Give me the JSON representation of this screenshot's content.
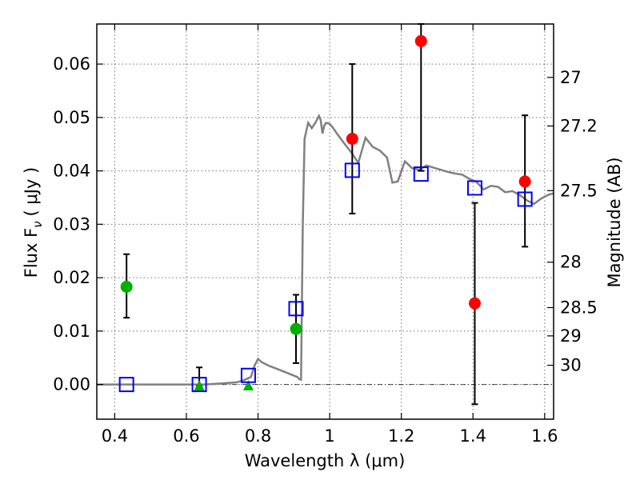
{
  "chart_data": {
    "type": "scatter",
    "xlabel": "Wavelength  λ (μm)",
    "ylabel": "Flux  F",
    "ylabel_sub": "ν",
    "ylabel_unit": "( μJy )",
    "y2label": "Magnitude (AB)",
    "xlim": [
      0.35,
      1.625
    ],
    "ylim": [
      -0.0065,
      0.0675
    ],
    "grid": true,
    "x_ticks": [
      {
        "value": 0.4,
        "label": "0.4"
      },
      {
        "value": 0.6,
        "label": "0.6"
      },
      {
        "value": 0.8,
        "label": "0.8"
      },
      {
        "value": 1.0,
        "label": "1"
      },
      {
        "value": 1.2,
        "label": "1.2"
      },
      {
        "value": 1.4,
        "label": "1.4"
      },
      {
        "value": 1.6,
        "label": "1.6"
      }
    ],
    "y_ticks": [
      {
        "value": 0.0,
        "label": "0.00"
      },
      {
        "value": 0.01,
        "label": "0.01"
      },
      {
        "value": 0.02,
        "label": "0.02"
      },
      {
        "value": 0.03,
        "label": "0.03"
      },
      {
        "value": 0.04,
        "label": "0.04"
      },
      {
        "value": 0.05,
        "label": "0.05"
      },
      {
        "value": 0.06,
        "label": "0.06"
      }
    ],
    "y2_ticks": [
      {
        "flux": 0.0575,
        "label": "27"
      },
      {
        "flux": 0.0484,
        "label": "27.2"
      },
      {
        "flux": 0.0363,
        "label": "27.5"
      },
      {
        "flux": 0.0229,
        "label": "28"
      },
      {
        "flux": 0.0144,
        "label": "28.5"
      },
      {
        "flux": 0.0091,
        "label": "29"
      },
      {
        "flux": 0.0036,
        "label": "30"
      }
    ],
    "model_sed": {
      "name": "model spectrum",
      "color": "#808080",
      "x": [
        0.35,
        0.45,
        0.55,
        0.65,
        0.7,
        0.74,
        0.76,
        0.78,
        0.79,
        0.8,
        0.81,
        0.83,
        0.85,
        0.88,
        0.91,
        0.915,
        0.92,
        0.925,
        0.93,
        0.94,
        0.95,
        0.96,
        0.97,
        0.975,
        0.98,
        0.985,
        0.99,
        1.0,
        1.01,
        1.02,
        1.04,
        1.06,
        1.08,
        1.1,
        1.12,
        1.14,
        1.16,
        1.175,
        1.19,
        1.21,
        1.23,
        1.25,
        1.27,
        1.29,
        1.31,
        1.33,
        1.35,
        1.37,
        1.39,
        1.41,
        1.43,
        1.45,
        1.47,
        1.49,
        1.51,
        1.53,
        1.55,
        1.57,
        1.59,
        1.61,
        1.625
      ],
      "y": [
        0.0,
        0.0,
        0.0,
        0.0,
        0.0002,
        0.0004,
        0.0008,
        0.0014,
        0.0035,
        0.0048,
        0.0042,
        0.0035,
        0.003,
        0.0022,
        0.0014,
        0.001,
        0.0009,
        0.03,
        0.046,
        0.049,
        0.048,
        0.049,
        0.0503,
        0.0495,
        0.047,
        0.0485,
        0.049,
        0.0488,
        0.048,
        0.047,
        0.0452,
        0.0435,
        0.0415,
        0.0462,
        0.0445,
        0.0438,
        0.0425,
        0.0378,
        0.038,
        0.0418,
        0.0405,
        0.0402,
        0.041,
        0.0406,
        0.0402,
        0.0398,
        0.0395,
        0.0393,
        0.0385,
        0.0379,
        0.0365,
        0.0372,
        0.037,
        0.036,
        0.0362,
        0.0355,
        0.0345,
        0.0338,
        0.0348,
        0.0355,
        0.0358
      ]
    },
    "series": [
      {
        "name": "green circles",
        "marker": "circle",
        "color": "#00b000",
        "x": [
          0.433,
          0.906
        ],
        "y": [
          0.0183,
          0.0104
        ],
        "err_low": [
          0.0125,
          0.004
        ],
        "err_high": [
          0.0244,
          0.0168
        ]
      },
      {
        "name": "green triangles",
        "marker": "triangle",
        "color": "#00b000",
        "x": [
          0.636,
          0.773
        ],
        "y": [
          -0.0002,
          -0.0002
        ],
        "err_low": [
          -0.0002,
          null
        ],
        "err_high": [
          0.0032,
          null
        ]
      },
      {
        "name": "red circles",
        "marker": "circle",
        "color": "#ff0000",
        "x": [
          1.063,
          1.255,
          1.405,
          1.545
        ],
        "y": [
          0.046,
          0.0643,
          0.0152,
          0.038
        ],
        "err_low": [
          0.032,
          0.04,
          -0.0037,
          0.0258
        ],
        "err_high": [
          0.06,
          0.0675,
          0.034,
          0.0504
        ]
      },
      {
        "name": "blue squares",
        "marker": "square",
        "color": "#0000ff",
        "x": [
          0.433,
          0.636,
          0.773,
          0.906,
          1.063,
          1.255,
          1.405,
          1.545
        ],
        "y": [
          0.0,
          0.0,
          0.0017,
          0.0142,
          0.0401,
          0.0394,
          0.0368,
          0.0347
        ]
      }
    ]
  }
}
